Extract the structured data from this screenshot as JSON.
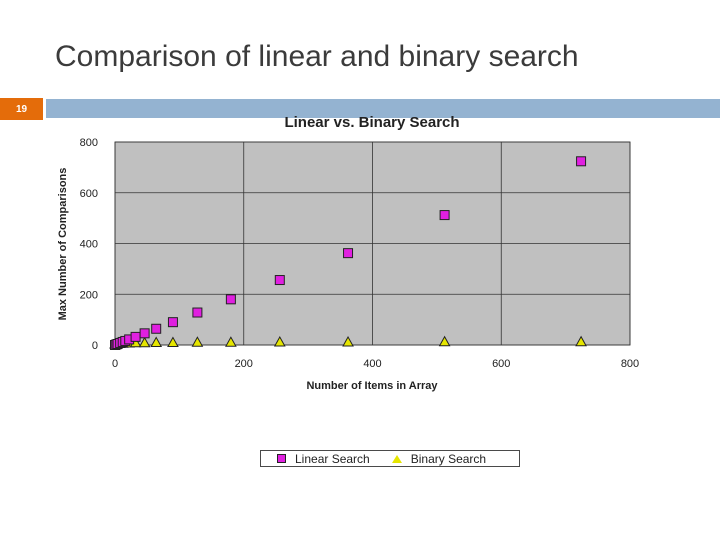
{
  "slide": {
    "title": "Comparison of linear and binary search",
    "number": "19"
  },
  "chart_data": {
    "type": "scatter",
    "title": "Linear vs. Binary Search",
    "xlabel": "Number of Items in Array",
    "ylabel": "Max Number of Comparisons",
    "xlim": [
      0,
      800
    ],
    "ylim": [
      0,
      800
    ],
    "xticks": [
      0,
      200,
      400,
      600,
      800
    ],
    "yticks": [
      0,
      200,
      400,
      600,
      800
    ],
    "grid": true,
    "legend_position": "bottom",
    "plot_background": "#c0c0c0",
    "series": [
      {
        "name": "Linear Search",
        "marker": "square",
        "color": "#e020e0",
        "x": [
          0,
          2,
          4,
          8,
          12,
          16,
          22,
          32,
          46,
          64,
          90,
          128,
          180,
          256,
          362,
          512,
          724
        ],
        "y": [
          0,
          2,
          4,
          8,
          12,
          16,
          22,
          32,
          46,
          64,
          90,
          128,
          180,
          256,
          362,
          512,
          724
        ]
      },
      {
        "name": "Binary Search",
        "marker": "triangle",
        "color": "#e6e600",
        "x": [
          0,
          2,
          4,
          8,
          12,
          16,
          22,
          32,
          46,
          64,
          90,
          128,
          180,
          256,
          362,
          512,
          724
        ],
        "y": [
          0,
          1,
          2,
          3,
          3,
          4,
          4,
          5,
          5,
          6,
          6,
          7,
          7,
          8,
          8,
          9,
          9
        ]
      }
    ]
  }
}
